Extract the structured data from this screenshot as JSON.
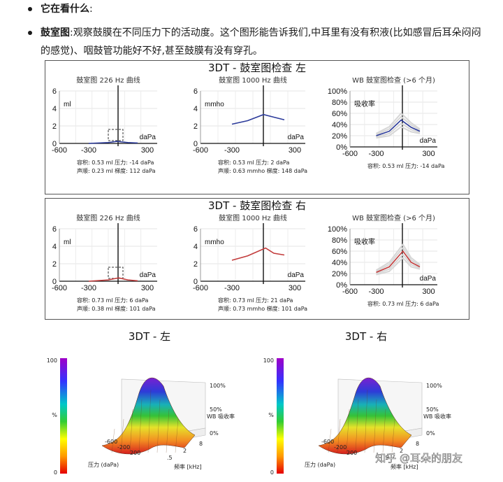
{
  "bullets": [
    {
      "bold": "它在看什么",
      "text": ":"
    },
    {
      "bold": "鼓室图",
      "text": ":观察鼓膜在不同压力下的活动度。这个图形能告诉我们,中耳里有没有积液(比如感冒后耳朵闷闷的感觉)、咽鼓管功能好不好,甚至鼓膜有没有穿孔。"
    }
  ],
  "panels": [
    {
      "title": "3DT - 鼓室图检查 左",
      "line_color": "#2b3a9a",
      "charts": [
        {
          "title": "鼓室图 226 Hz 曲线",
          "unit": "ml",
          "yticks": [
            "6",
            "4",
            "2",
            "0"
          ],
          "xticks": [
            "-600",
            "-300",
            "300"
          ],
          "xunit": "daPa"
        },
        {
          "title": "鼓室图 1000 Hz 曲线",
          "unit": "mmho",
          "yticks": [
            "6",
            "4",
            "2",
            "0"
          ],
          "xticks": [
            "-600",
            "-300",
            "300"
          ],
          "xunit": "daPa"
        },
        {
          "title": "WB 鼓室图检查 (>6 个月)",
          "unit": "吸收率",
          "yticks": [
            "100%",
            "80%",
            "60%",
            "40%",
            "20%",
            "0%"
          ],
          "xticks": [
            "-600",
            "-300",
            "300"
          ],
          "xunit": "daPa"
        }
      ],
      "stats": [
        [
          "容积:  0.53 ml 压力:  -14 daPa",
          "声顺:  0.23 ml 梯度:  112 daPa"
        ],
        [
          "容积:  0.53 ml 压力:  2 daPa",
          "声顺:  0.63 mmho 梯度:  148 daPa"
        ],
        [
          "容积:  0.53 ml 压力:  -14 daPa",
          ""
        ]
      ]
    },
    {
      "title": "3DT - 鼓室图检查 右",
      "line_color": "#c23b3b",
      "charts": [
        {
          "title": "鼓室图 226 Hz 曲线",
          "unit": "ml",
          "yticks": [
            "6",
            "4",
            "2",
            "0"
          ],
          "xticks": [
            "-600",
            "-300",
            "300"
          ],
          "xunit": "daPa"
        },
        {
          "title": "鼓室图 1000 Hz 曲线",
          "unit": "mmho",
          "yticks": [
            "6",
            "4",
            "2",
            "0"
          ],
          "xticks": [
            "-600",
            "-300",
            "300"
          ],
          "xunit": "daPa"
        },
        {
          "title": "WB 鼓室图检查 (>6 个月)",
          "unit": "吸收率",
          "yticks": [
            "100%",
            "80%",
            "60%",
            "40%",
            "20%",
            "0%"
          ],
          "xticks": [
            "-600",
            "-300",
            "300"
          ],
          "xunit": "daPa"
        }
      ],
      "stats": [
        [
          "容积:  0.73 ml 压力:  6 daPa",
          "声顺:  0.38 ml 梯度:  101 daPa"
        ],
        [
          "容积:  0.73 ml 压力:  21 daPa",
          "声顺:  0.73 mmho 梯度:  101 daPa"
        ],
        [
          "容积:  0.73 ml 压力:  6 daPa",
          ""
        ]
      ]
    }
  ],
  "bottom": {
    "left_title": "3DT - 左",
    "right_title": "3DT - 右",
    "colorbar_top": "100",
    "colorbar_bottom": "0",
    "colorbar_label": "%",
    "zticks": [
      "100%",
      "50%",
      "0%"
    ],
    "z_label": "WB 吸收率",
    "pressure_ticks": [
      "-600",
      "-200",
      "200"
    ],
    "freq_ticks": [
      ".5",
      "2",
      "8"
    ],
    "pressure_label": "压力 (daPa)",
    "freq_label": "频率 [kHz]",
    "watermark": "知乎 @耳朵的朋友"
  },
  "chart_data": [
    {
      "type": "line",
      "title": "鼓室图 226 Hz 曲线",
      "xlabel": "daPa",
      "ylabel": "ml",
      "xlim": [
        -600,
        400
      ],
      "ylim": [
        0,
        6
      ],
      "series": [
        {
          "x": [
            -300,
            -100,
            -14,
            100,
            200
          ],
          "values": [
            0.0,
            0.1,
            0.23,
            0.1,
            0.05
          ]
        }
      ]
    },
    {
      "type": "line",
      "title": "鼓室图 1000 Hz 曲线",
      "xlabel": "daPa",
      "ylabel": "mmho",
      "xlim": [
        -600,
        400
      ],
      "ylim": [
        0,
        6
      ],
      "series": [
        {
          "x": [
            -300,
            -150,
            2,
            100,
            200
          ],
          "values": [
            2.2,
            2.6,
            3.3,
            3.0,
            2.7
          ]
        }
      ]
    },
    {
      "type": "line",
      "title": "WB 鼓室图检查 (>6 个月)",
      "xlabel": "daPa",
      "ylabel": "吸收率",
      "xlim": [
        -600,
        400
      ],
      "ylim": [
        0,
        100
      ],
      "series": [
        {
          "x": [
            -300,
            -150,
            -14,
            100,
            200
          ],
          "values": [
            20,
            28,
            48,
            35,
            28
          ]
        }
      ]
    },
    {
      "type": "line",
      "title": "鼓室图 226 Hz 曲线",
      "xlabel": "daPa",
      "ylabel": "ml",
      "xlim": [
        -600,
        400
      ],
      "ylim": [
        0,
        6
      ],
      "series": [
        {
          "x": [
            -300,
            -100,
            6,
            100,
            200
          ],
          "values": [
            0.0,
            0.15,
            0.38,
            0.15,
            0.05
          ]
        }
      ]
    },
    {
      "type": "line",
      "title": "鼓室图 1000 Hz 曲线",
      "xlabel": "daPa",
      "ylabel": "mmho",
      "xlim": [
        -600,
        400
      ],
      "ylim": [
        0,
        6
      ],
      "series": [
        {
          "x": [
            -300,
            -150,
            21,
            100,
            200
          ],
          "values": [
            2.4,
            2.9,
            3.8,
            3.2,
            3.0
          ]
        }
      ]
    },
    {
      "type": "line",
      "title": "WB 鼓室图检查 (>6 个月)",
      "xlabel": "daPa",
      "ylabel": "吸收率",
      "xlim": [
        -600,
        400
      ],
      "ylim": [
        0,
        100
      ],
      "series": [
        {
          "x": [
            -300,
            -150,
            6,
            100,
            200
          ],
          "values": [
            22,
            32,
            60,
            40,
            32
          ]
        }
      ]
    }
  ]
}
